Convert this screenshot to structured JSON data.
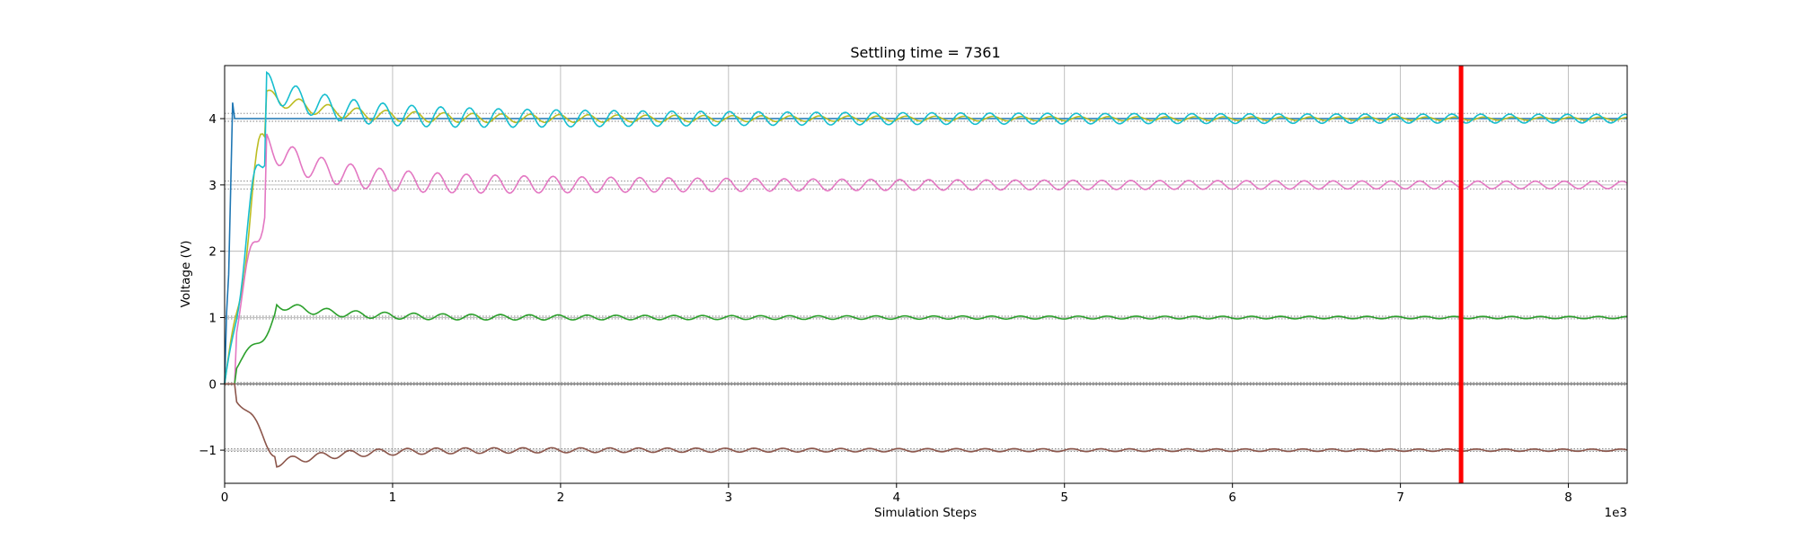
{
  "chart_data": {
    "type": "line",
    "title": "Settling time = 7361",
    "xlabel": "Simulation Steps",
    "ylabel": "Voltage (V)",
    "x_offset_label": "1e3",
    "xlim": [
      0,
      8.35
    ],
    "ylim": [
      -1.5,
      4.8
    ],
    "xticks": [
      0,
      1,
      2,
      3,
      4,
      5,
      6,
      7,
      8
    ],
    "yticks": [
      -1,
      0,
      1,
      2,
      3,
      4
    ],
    "xtick_labels": [
      "0",
      "1",
      "2",
      "3",
      "4",
      "5",
      "6",
      "7",
      "8"
    ],
    "ytick_labels": [
      "−1",
      "0",
      "1",
      "2",
      "3",
      "4"
    ],
    "grid": true,
    "settling_line": {
      "x": 7.361,
      "color": "#ff0000"
    },
    "tolerance_bands": [
      {
        "lo": 3.96,
        "hi": 4.08
      },
      {
        "lo": 2.94,
        "hi": 3.06
      },
      {
        "lo": 0.98,
        "hi": 1.02
      },
      {
        "lo": -0.02,
        "hi": 0.02
      },
      {
        "lo": -1.02,
        "hi": -0.98
      }
    ],
    "series": [
      {
        "color": "#1f77b4",
        "target": 4.0,
        "rise_end": 0.05,
        "overshoot": 0.0,
        "amp0": 0.0,
        "amp_end": 0.0
      },
      {
        "color": "#bcbd22",
        "target": 4.0,
        "rise_end": 0.25,
        "overshoot": 0.35,
        "amp0": 0.1,
        "amp_end": 0.02
      },
      {
        "color": "#17becf",
        "target": 4.0,
        "rise_end": 0.25,
        "overshoot": 0.5,
        "amp0": 0.2,
        "amp_end": 0.06
      },
      {
        "color": "#e377c2",
        "target": 3.0,
        "rise_end": 0.25,
        "overshoot": 0.6,
        "amp0": 0.2,
        "amp_end": 0.05
      },
      {
        "color": "#2ca02c",
        "target": 1.0,
        "rise_end": 0.3,
        "overshoot": 0.2,
        "amp0": 0.06,
        "amp_end": 0.015
      },
      {
        "color": "#7f7f7f",
        "target": 0.0,
        "rise_end": 0.0,
        "overshoot": 0.0,
        "amp0": 0.0,
        "amp_end": 0.0
      },
      {
        "color": "#8c564b",
        "target": -1.0,
        "rise_end": 0.3,
        "overshoot": -0.2,
        "amp0": 0.06,
        "amp_end": 0.015
      }
    ]
  }
}
